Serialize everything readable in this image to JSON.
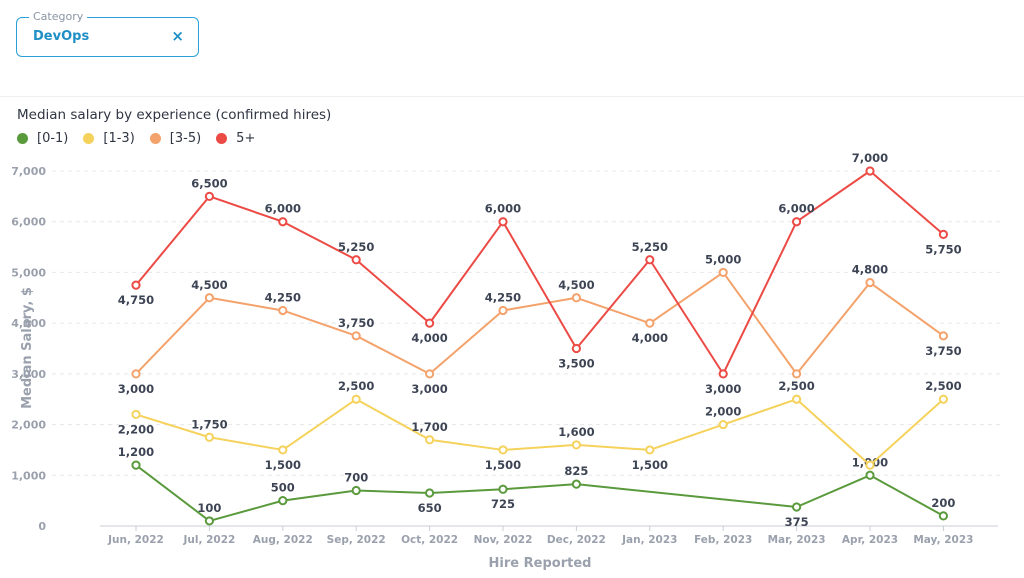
{
  "filter": {
    "legend": "Category",
    "value": "DevOps",
    "clear_icon": "close-icon",
    "clear_glyph": "×"
  },
  "chart_data": {
    "type": "line",
    "title": "Median salary by experience (confirmed hires)",
    "xlabel": "Hire Reported",
    "ylabel": "Median Salary, $",
    "ylim": [
      0,
      7000
    ],
    "yticks": [
      "0",
      "1,000",
      "2,000",
      "3,000",
      "4,000",
      "5,000",
      "6,000",
      "7,000"
    ],
    "categories": [
      "Jun, 2022",
      "Jul, 2022",
      "Aug, 2022",
      "Sep, 2022",
      "Oct, 2022",
      "Nov, 2022",
      "Dec, 2022",
      "Jan, 2023",
      "Feb, 2023",
      "Mar, 2023",
      "Apr, 2023",
      "May, 2023"
    ],
    "grid": true,
    "legend_position": "top-left",
    "series": [
      {
        "name": "[0-1)",
        "color": "#5a9a3c",
        "values": [
          1200,
          100,
          500,
          700,
          650,
          725,
          825,
          null,
          null,
          375,
          1000,
          200
        ],
        "labels": [
          "1,200",
          "100",
          "500",
          "700",
          "650",
          "725",
          "825",
          null,
          null,
          "375",
          "1,000",
          "200"
        ],
        "label_pos": [
          "above",
          "above",
          "above",
          "above",
          "below",
          "below",
          "above",
          null,
          null,
          "below",
          "above",
          "above"
        ]
      },
      {
        "name": "[1-3)",
        "color": "#f5d25b",
        "values": [
          2200,
          1750,
          1500,
          2500,
          1700,
          1500,
          1600,
          1500,
          2000,
          2500,
          1200,
          2500
        ],
        "labels": [
          "2,200",
          "1,750",
          "1,500",
          "2,500",
          "1,700",
          "1,500",
          "1,600",
          "1,500",
          "2,000",
          "2,500",
          null,
          "2,500"
        ],
        "label_pos": [
          "below",
          "above",
          "below",
          "above",
          "above",
          "below",
          "above",
          "below",
          "above",
          "above",
          null,
          "above"
        ]
      },
      {
        "name": "[3-5)",
        "color": "#f4a26b",
        "values": [
          3000,
          4500,
          4250,
          3750,
          3000,
          4250,
          4500,
          4000,
          5000,
          3000,
          4800,
          3750
        ],
        "labels": [
          "3,000",
          "4,500",
          "4,250",
          "3,750",
          "3,000",
          "4,250",
          "4,500",
          "4,000",
          "5,000",
          null,
          "4,800",
          "3,750"
        ],
        "label_pos": [
          "below",
          "above",
          "above",
          "above",
          "below",
          "above",
          "above",
          "below",
          "above",
          null,
          "above",
          "below"
        ]
      },
      {
        "name": "5+",
        "color": "#ec4a45",
        "values": [
          4750,
          6500,
          6000,
          5250,
          4000,
          6000,
          3500,
          5250,
          3000,
          6000,
          7000,
          5750
        ],
        "labels": [
          "4,750",
          "6,500",
          "6,000",
          "5,250",
          "4,000",
          "6,000",
          "3,500",
          "5,250",
          "3,000",
          "6,000",
          "7,000",
          "5,750"
        ],
        "label_pos": [
          "below",
          "above",
          "above",
          "above",
          "below",
          "above",
          "below",
          "above",
          "below",
          "above",
          "above",
          "below"
        ]
      }
    ]
  }
}
